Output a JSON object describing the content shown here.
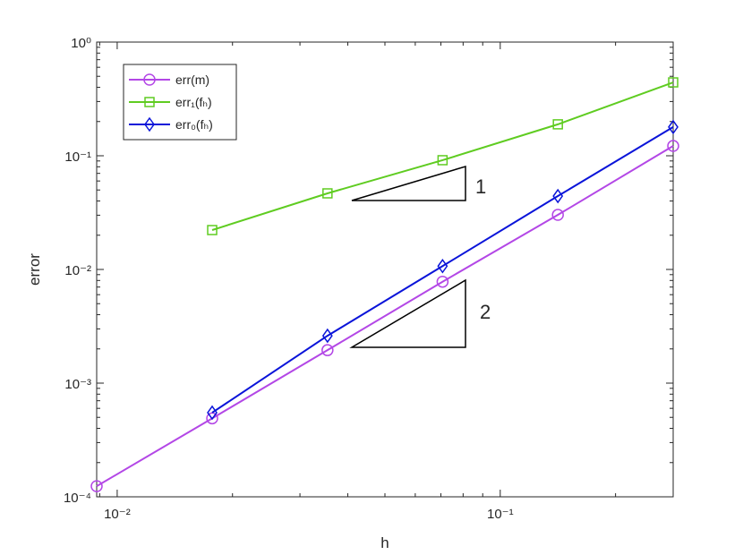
{
  "chart_data": {
    "type": "line",
    "x_label": "h",
    "y_label": "error",
    "x": [
      0.2828,
      0.1414,
      0.0707,
      0.0354,
      0.0177,
      0.00884
    ],
    "xlim": [
      0.00884,
      0.2828
    ],
    "ylim": [
      0.0001,
      1
    ],
    "x_scale": "log",
    "y_scale": "log",
    "xticks": [
      {
        "value": 0.01,
        "label": "10⁻²"
      },
      {
        "value": 0.1,
        "label": "10⁻¹"
      }
    ],
    "yticks": [
      {
        "value": 0.0001,
        "label": "10⁻⁴"
      },
      {
        "value": 0.001,
        "label": "10⁻³"
      },
      {
        "value": 0.01,
        "label": "10⁻²"
      },
      {
        "value": 0.1,
        "label": "10⁻¹"
      },
      {
        "value": 1,
        "label": "10⁰"
      }
    ],
    "legend": "upper left",
    "series": [
      {
        "name": "err(m)",
        "color": "#b347e6",
        "marker": "circle",
        "values": [
          0.122,
          0.0302,
          0.0078,
          0.00195,
          0.00049,
          0.000124
        ]
      },
      {
        "name": "err₁(fₕ)",
        "color": "#5fcc21",
        "marker": "square",
        "values": [
          0.442,
          0.189,
          0.0914,
          0.0467,
          0.0222,
          null
        ]
      },
      {
        "name": "err₀(fₕ)",
        "color": "#0a14d9",
        "marker": "diamond",
        "values": [
          0.179,
          0.0442,
          0.0107,
          0.00261,
          0.00055,
          null
        ]
      }
    ],
    "annotations": [
      "1",
      "2"
    ]
  }
}
